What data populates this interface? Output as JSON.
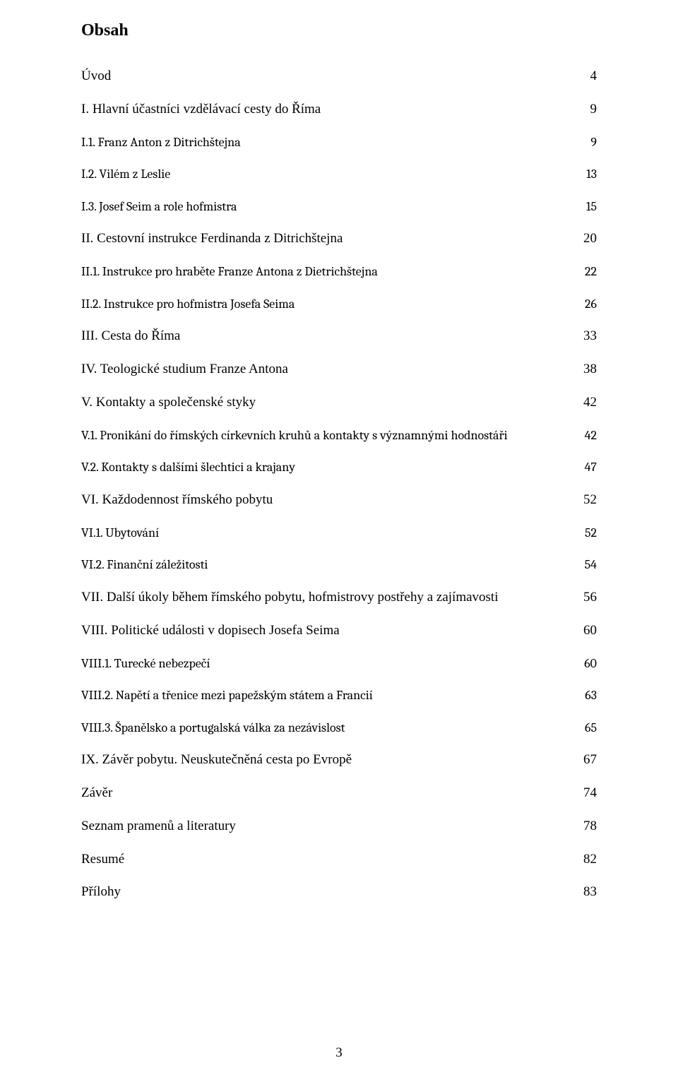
{
  "title": "Obsah",
  "page_number": "3",
  "typography": {
    "body_font": "Times New Roman",
    "sub_font": "Cambria",
    "title_size_pt": 18,
    "body_size_pt": 14
  },
  "colors": {
    "text": "#000000",
    "background": "#ffffff"
  },
  "toc": [
    {
      "level": 0,
      "label": "Úvod",
      "page": "4"
    },
    {
      "level": 0,
      "label": "I. Hlavní účastníci vzdělávací cesty do Říma",
      "page": "9"
    },
    {
      "level": 1,
      "label": "I.1. Franz Anton z Ditrichštejna",
      "page": " 9"
    },
    {
      "level": 1,
      "label": "I.2. Vilém z Leslie",
      "page": "13"
    },
    {
      "level": 1,
      "label": "I.3. Josef Seim a role hofmistra",
      "page": "15"
    },
    {
      "level": 0,
      "label": "II. Cestovní instrukce Ferdinanda z Ditrichštejna",
      "page": "20"
    },
    {
      "level": 1,
      "label": "II.1. Instrukce pro hraběte Franze Antona z Dietrichštejna",
      "page": "22"
    },
    {
      "level": 1,
      "label": "II.2. Instrukce pro hofmistra Josefa Seima",
      "page": "26"
    },
    {
      "level": 0,
      "label": "III. Cesta do Říma",
      "page": "33"
    },
    {
      "level": 0,
      "label": "IV. Teologické studium Franze Antona",
      "page": "38"
    },
    {
      "level": 0,
      "label": "V. Kontakty a společenské styky",
      "page": "42"
    },
    {
      "level": 1,
      "label": "V.1. Pronikání do římských církevních kruhů a kontakty s významnými hodnostáři",
      "page": "42"
    },
    {
      "level": 1,
      "label": "V.2. Kontakty s dalšími šlechtici a krajany",
      "page": "47"
    },
    {
      "level": 0,
      "label": "VI. Každodennost římského pobytu",
      "page": "52"
    },
    {
      "level": 1,
      "label": "VI.1. Ubytování",
      "page": "52"
    },
    {
      "level": 1,
      "label": "VI.2. Finanční záležitosti",
      "page": "54"
    },
    {
      "level": 0,
      "label": "VII. Další úkoly během římského pobytu, hofmistrovy postřehy a zajímavosti",
      "page": "56"
    },
    {
      "level": 0,
      "label": "VIII. Politické události v dopisech Josefa Seima",
      "page": "60"
    },
    {
      "level": 1,
      "label": "VIII.1. Turecké nebezpečí",
      "page": "60"
    },
    {
      "level": 1,
      "label": "VIII.2. Napětí a třenice mezi papežským státem a Francií",
      "page": "63"
    },
    {
      "level": 1,
      "label": "VIII.3. Španělsko a portugalská válka za nezávislost",
      "page": "65"
    },
    {
      "level": 0,
      "label": "IX. Závěr pobytu. Neuskutečněná cesta po Evropě",
      "page": "67"
    },
    {
      "level": 0,
      "label": "Závěr",
      "page": "74"
    },
    {
      "level": 0,
      "label": "Seznam pramenů a literatury",
      "page": "78"
    },
    {
      "level": 0,
      "label": "Resumé",
      "page": "82"
    },
    {
      "level": 0,
      "label": "Přílohy",
      "page": "83"
    }
  ]
}
